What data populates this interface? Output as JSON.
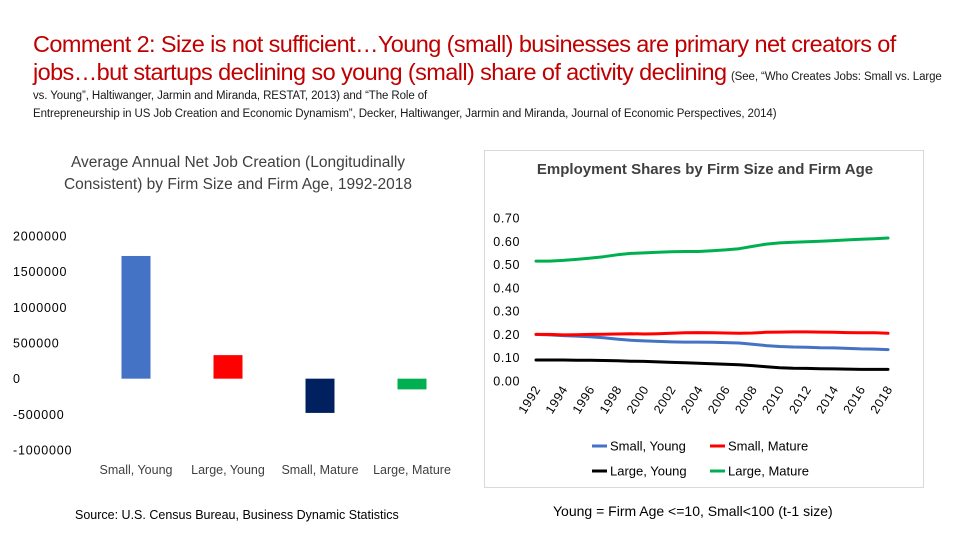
{
  "slide": {
    "title": "Comment 2:  Size is not sufficient…Young (small) businesses are primary net creators of jobs…but startups declining so young (small) share of activity declining",
    "citation": "(See, “Who Creates Jobs:  Small vs. Large vs. Young”, Haltiwanger, Jarmin and Miranda, RESTAT, 2013) and “The Role of",
    "citation_cont": "Entrepreneurship in US Job Creation and Economic Dynamism”, Decker, Haltiwanger, Jarmin and Miranda, Journal of Economic Perspectives, 2014)",
    "source": "Source:  U.S. Census Bureau, Business Dynamic Statistics",
    "footnote": "Young = Firm Age <=10, Small<100 (t-1 size)"
  },
  "colors": {
    "title_red": "#c00000"
  },
  "chart_data": [
    {
      "type": "bar",
      "title": "Average Annual Net Job Creation (Longitudinally Consistent) by Firm Size and Firm Age, 1992-2018",
      "categories": [
        "Small, Young",
        "Large, Young",
        "Small, Mature",
        "Large, Mature"
      ],
      "values": [
        1720000,
        330000,
        -480000,
        -150000
      ],
      "bar_colors": [
        "#4472c4",
        "#ff0000",
        "#002060",
        "#00b050"
      ],
      "ylim": [
        -1000000,
        2000000
      ],
      "yticks": [
        "2000000",
        "1500000",
        "1000000",
        "500000",
        "0",
        "-500000",
        "-1000000"
      ],
      "grid": false,
      "xlabel": "",
      "ylabel": ""
    },
    {
      "type": "line",
      "title": "Employment Shares by Firm Size and Firm Age",
      "x": [
        1992,
        1993,
        1994,
        1995,
        1996,
        1997,
        1998,
        1999,
        2000,
        2001,
        2002,
        2003,
        2004,
        2005,
        2006,
        2007,
        2008,
        2009,
        2010,
        2011,
        2012,
        2013,
        2014,
        2015,
        2016,
        2017,
        2018
      ],
      "xticks": [
        "1992",
        "1994",
        "1996",
        "1998",
        "2000",
        "2002",
        "2004",
        "2006",
        "2008",
        "2010",
        "2012",
        "2014",
        "2016",
        "2018"
      ],
      "yticks": [
        "0.70",
        "0.60",
        "0.50",
        "0.40",
        "0.30",
        "0.20",
        "0.10",
        "0.00"
      ],
      "ylim": [
        0,
        0.7
      ],
      "legend": "bottom",
      "grid": false,
      "series": [
        {
          "name": "Small, Young",
          "color": "#4472c4",
          "values": [
            0.2,
            0.198,
            0.195,
            0.193,
            0.19,
            0.186,
            0.18,
            0.175,
            0.172,
            0.17,
            0.168,
            0.167,
            0.167,
            0.166,
            0.165,
            0.163,
            0.158,
            0.152,
            0.148,
            0.146,
            0.145,
            0.143,
            0.142,
            0.14,
            0.138,
            0.137,
            0.135
          ]
        },
        {
          "name": "Small, Mature",
          "color": "#ff0000",
          "values": [
            0.2,
            0.2,
            0.198,
            0.199,
            0.2,
            0.201,
            0.202,
            0.203,
            0.202,
            0.203,
            0.205,
            0.207,
            0.208,
            0.207,
            0.206,
            0.205,
            0.206,
            0.209,
            0.21,
            0.211,
            0.211,
            0.21,
            0.209,
            0.208,
            0.207,
            0.207,
            0.205
          ]
        },
        {
          "name": "Large, Young",
          "color": "#000000",
          "values": [
            0.09,
            0.09,
            0.09,
            0.089,
            0.089,
            0.088,
            0.087,
            0.085,
            0.084,
            0.082,
            0.08,
            0.078,
            0.076,
            0.074,
            0.072,
            0.07,
            0.066,
            0.061,
            0.057,
            0.055,
            0.054,
            0.053,
            0.052,
            0.051,
            0.05,
            0.05,
            0.05
          ]
        },
        {
          "name": "Large, Mature",
          "color": "#00b050",
          "values": [
            0.515,
            0.515,
            0.518,
            0.522,
            0.528,
            0.534,
            0.542,
            0.548,
            0.55,
            0.553,
            0.555,
            0.556,
            0.556,
            0.559,
            0.563,
            0.568,
            0.578,
            0.588,
            0.593,
            0.596,
            0.598,
            0.6,
            0.603,
            0.606,
            0.609,
            0.611,
            0.614
          ]
        }
      ]
    }
  ]
}
